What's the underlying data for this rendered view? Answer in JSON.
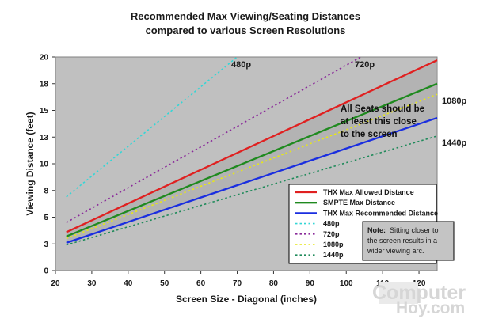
{
  "chart_data": {
    "type": "line",
    "title": [
      "Recommended Max Viewing/Seating Distances",
      "compared to various Screen Resolutions"
    ],
    "xlabel": "Screen Size - Diagonal (inches)",
    "ylabel": "Viewing Distance (feet)",
    "xlim": [
      20,
      125
    ],
    "ylim": [
      0,
      20
    ],
    "x_ticks": [
      20,
      30,
      40,
      50,
      60,
      70,
      80,
      90,
      100,
      110,
      120
    ],
    "y_ticks": [
      {
        "value": 0,
        "label": "0"
      },
      {
        "value": 2.5,
        "label": "3"
      },
      {
        "value": 5,
        "label": "5"
      },
      {
        "value": 7.5,
        "label": "8"
      },
      {
        "value": 10,
        "label": "10"
      },
      {
        "value": 12.5,
        "label": "13"
      },
      {
        "value": 15,
        "label": "15"
      },
      {
        "value": 17.5,
        "label": "18"
      },
      {
        "value": 20,
        "label": "20"
      }
    ],
    "series": [
      {
        "name": "THX Max Allowed Distance",
        "color": "#e02020",
        "style": "solid",
        "x": [
          23,
          125
        ],
        "y": [
          3.6,
          19.7
        ]
      },
      {
        "name": "SMPTE Max Distance",
        "color": "#1f8a1f",
        "style": "solid",
        "x": [
          23,
          125
        ],
        "y": [
          3.2,
          17.5
        ]
      },
      {
        "name": "THX Max Recommended Distance",
        "color": "#1a2ee0",
        "style": "solid",
        "x": [
          23,
          125
        ],
        "y": [
          2.6,
          14.3
        ]
      },
      {
        "name": "480p",
        "color": "#33d6d6",
        "style": "dotted",
        "x": [
          23,
          70
        ],
        "y": [
          6.9,
          20
        ]
      },
      {
        "name": "720p",
        "color": "#8a2a9a",
        "style": "dotted",
        "x": [
          23,
          104
        ],
        "y": [
          4.5,
          20
        ]
      },
      {
        "name": "1080p",
        "color": "#e6e61a",
        "style": "dotted",
        "x": [
          23,
          125
        ],
        "y": [
          3.0,
          16.5
        ]
      },
      {
        "name": "1440p",
        "color": "#1f8a5a",
        "style": "dotted",
        "x": [
          23,
          125
        ],
        "y": [
          2.4,
          12.6
        ]
      }
    ],
    "curve_labels": [
      "480p",
      "720p",
      "1080p",
      "1440p"
    ],
    "annotation": [
      "All Seats should be",
      "at least this close",
      "to the screen"
    ],
    "legend": {
      "placement": "bottom-right",
      "entries": [
        "THX Max Allowed Distance",
        "SMPTE Max Distance",
        "THX Max Recommended Distance",
        "480p",
        "720p",
        "1080p",
        "1440p"
      ]
    },
    "note": {
      "bold": "Note:",
      "lines": [
        "Sitting closer to",
        "the screen results in a",
        "wider viewing arc."
      ]
    },
    "colors": {
      "plot_bg": "#c0c0c0",
      "band": "#a8a8a8"
    },
    "grid": false
  },
  "watermark": {
    "line1": "Computer",
    "line2": "Hoy.com"
  }
}
